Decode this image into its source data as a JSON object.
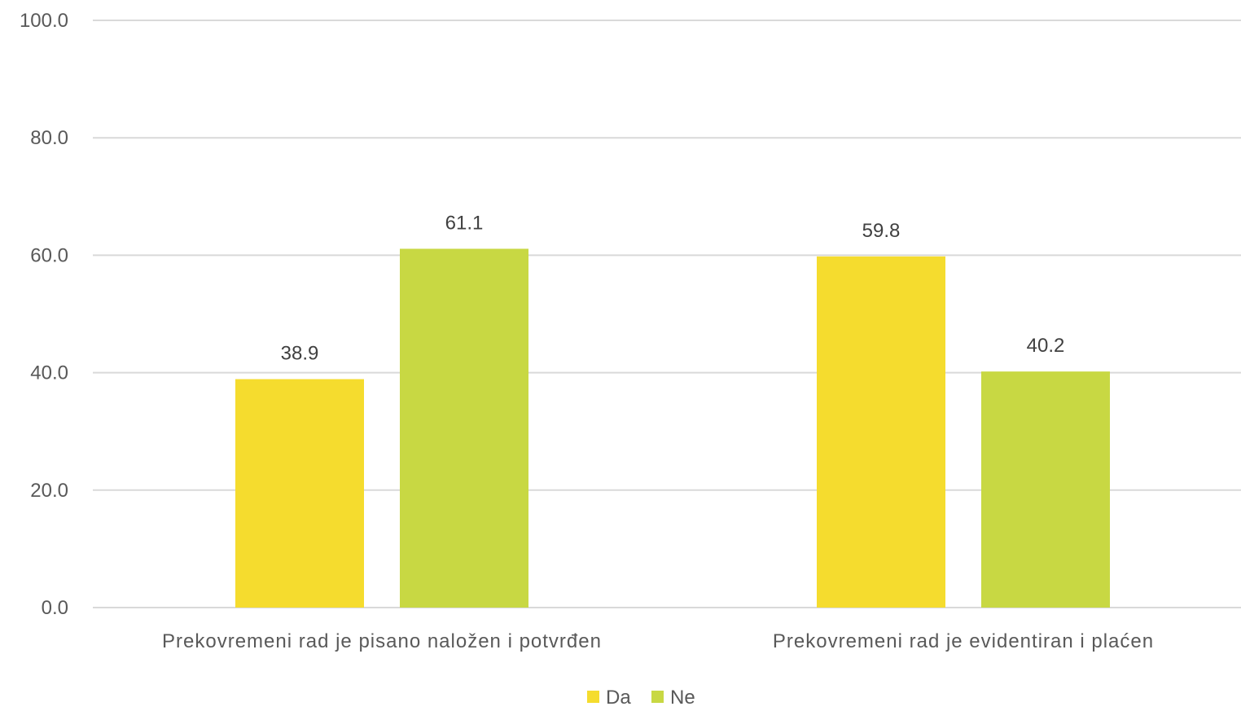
{
  "chart_data": {
    "type": "bar",
    "categories": [
      "Prekovremeni rad je pisano naložen i potvrđen",
      "Prekovremeni rad je evidentiran i plaćen"
    ],
    "series": [
      {
        "name": "Da",
        "values": [
          38.9,
          59.8
        ],
        "color": "#f5dc2e"
      },
      {
        "name": "Ne",
        "values": [
          61.1,
          40.2
        ],
        "color": "#c8d843"
      }
    ],
    "data_labels": [
      [
        "38.9",
        "59.8"
      ],
      [
        "61.1",
        "40.2"
      ]
    ],
    "yticks": [
      "0.0",
      "20.0",
      "40.0",
      "60.0",
      "80.0",
      "100.0"
    ],
    "ylim": [
      0,
      100
    ],
    "grid": true,
    "legend_position": "bottom"
  }
}
